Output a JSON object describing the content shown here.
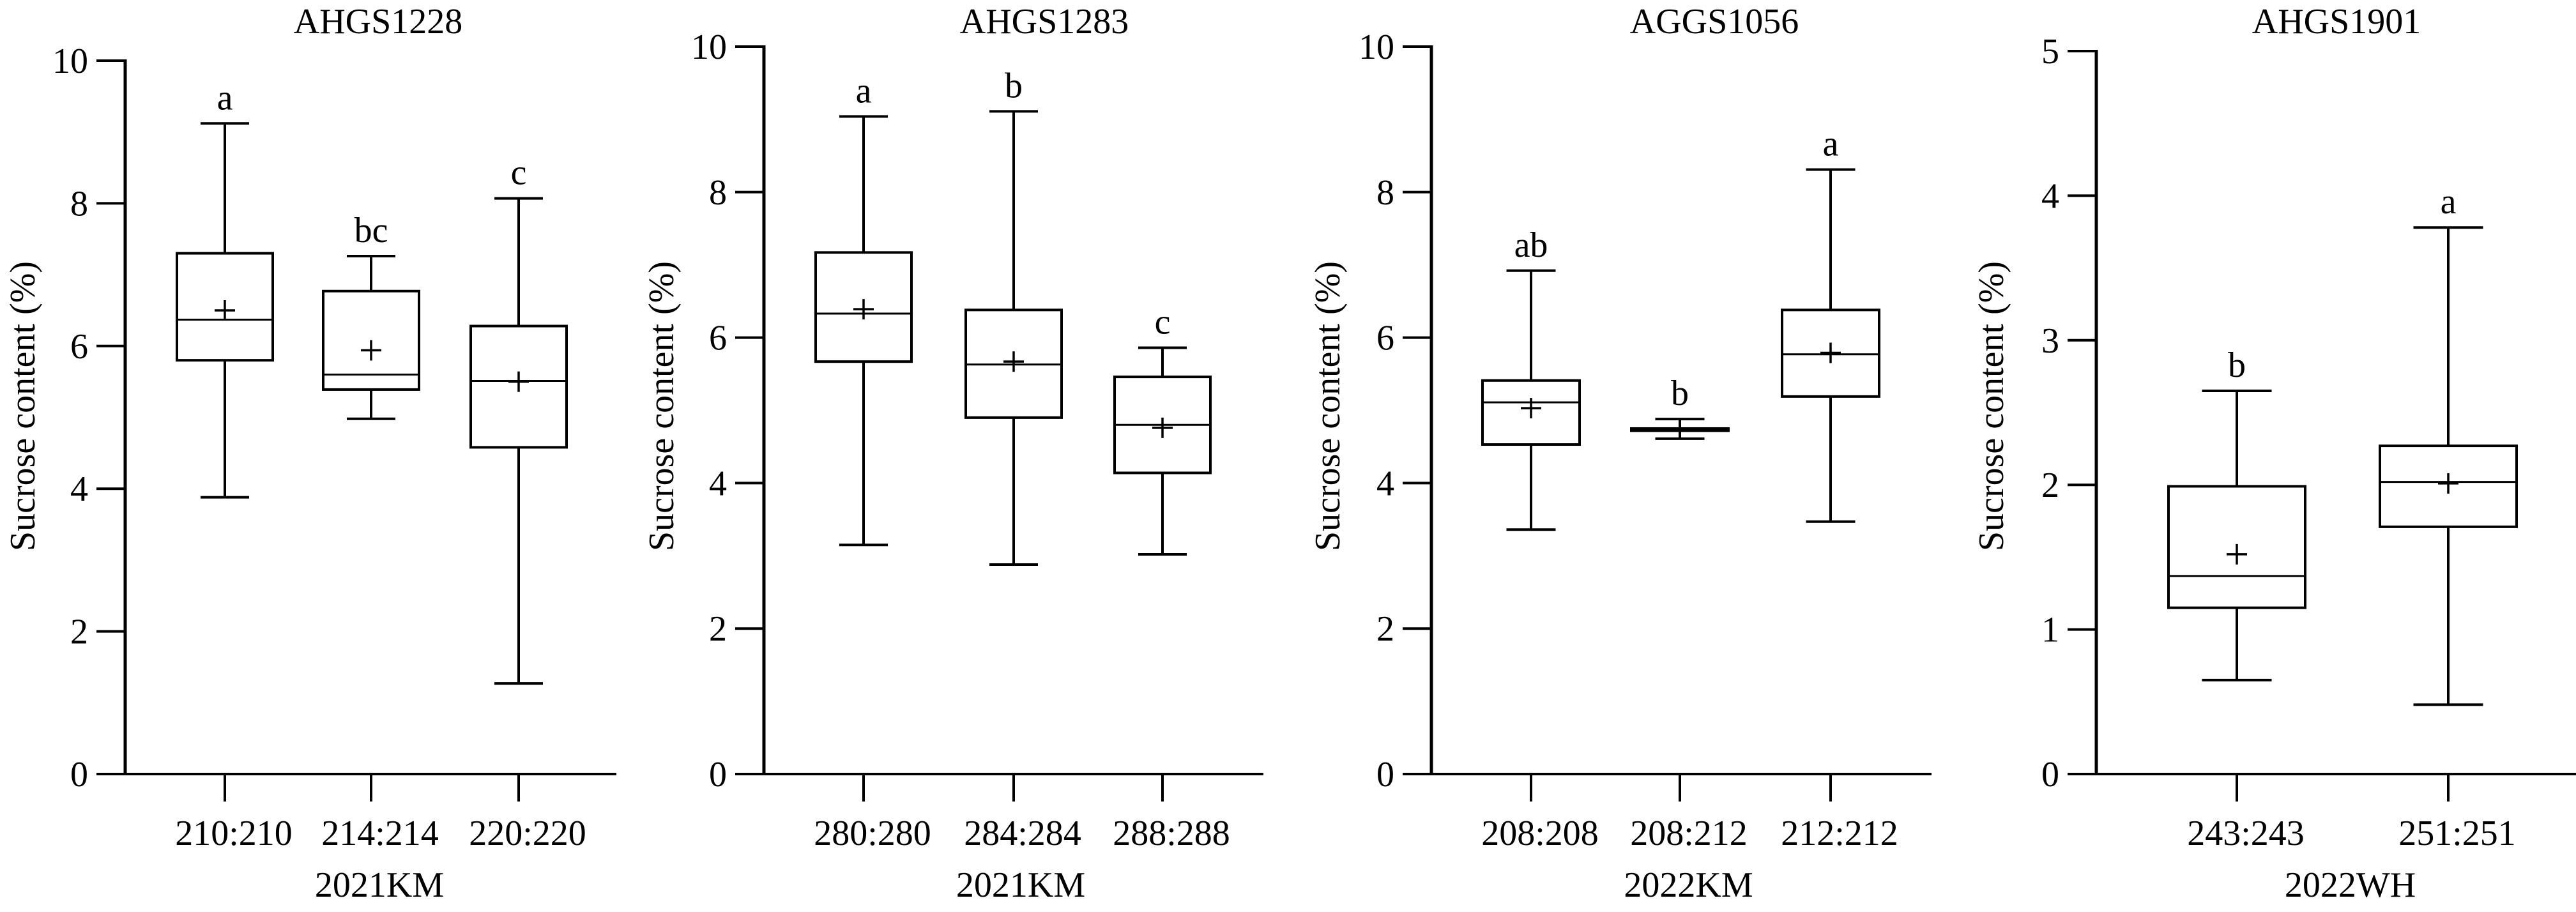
{
  "chart_data": [
    {
      "type": "box",
      "title": "AHGS1228",
      "xlabel": "2021KM",
      "ylabel": "Sucrose content (%)",
      "ylim": [
        0,
        10
      ],
      "yticks": [
        "0",
        "2",
        "4",
        "6",
        "8",
        "10"
      ],
      "yticks_values": [
        0,
        2,
        4,
        6,
        8,
        10
      ],
      "categories": [
        "210:210",
        "214:214",
        "220:220"
      ],
      "boxes": [
        {
          "min": 3.88,
          "q1": 5.8,
          "median": 6.37,
          "q3": 7.3,
          "max": 9.12,
          "mean": 6.5,
          "letter": "a"
        },
        {
          "min": 4.98,
          "q1": 5.39,
          "median": 5.6,
          "q3": 6.77,
          "max": 7.26,
          "mean": 5.94,
          "letter": "bc"
        },
        {
          "min": 1.27,
          "q1": 4.58,
          "median": 5.51,
          "q3": 6.28,
          "max": 8.07,
          "mean": 5.5,
          "letter": "c"
        }
      ]
    },
    {
      "type": "box",
      "title": "AHGS1283",
      "xlabel": "2021KM",
      "ylabel": "Sucrose content (%)",
      "ylim": [
        0,
        10
      ],
      "yticks": [
        "0",
        "2",
        "4",
        "6",
        "8",
        "10"
      ],
      "yticks_values": [
        0,
        2,
        4,
        6,
        8,
        10
      ],
      "categories": [
        "280:280",
        "284:284",
        "288:288"
      ],
      "boxes": [
        {
          "min": 3.15,
          "q1": 5.67,
          "median": 6.33,
          "q3": 7.17,
          "max": 9.04,
          "mean": 6.39,
          "letter": "a"
        },
        {
          "min": 2.88,
          "q1": 4.9,
          "median": 5.63,
          "q3": 6.38,
          "max": 9.11,
          "mean": 5.67,
          "letter": "b"
        },
        {
          "min": 3.02,
          "q1": 4.14,
          "median": 4.8,
          "q3": 5.46,
          "max": 5.86,
          "mean": 4.76,
          "letter": "c"
        }
      ]
    },
    {
      "type": "box",
      "title": "AGGS1056",
      "xlabel": "2022KM",
      "ylabel": "Sucrose content (%)",
      "ylim": [
        0,
        10
      ],
      "yticks": [
        "0",
        "2",
        "4",
        "6",
        "8",
        "10"
      ],
      "yticks_values": [
        0,
        2,
        4,
        6,
        8,
        10
      ],
      "categories": [
        "208:208",
        "208:212",
        "212:212"
      ],
      "boxes": [
        {
          "min": 3.36,
          "q1": 4.53,
          "median": 5.11,
          "q3": 5.41,
          "max": 6.92,
          "mean": 5.03,
          "letter": "ab"
        },
        {
          "min": 4.61,
          "q1": 4.72,
          "median": 4.73,
          "q3": 4.75,
          "max": 4.88,
          "mean": 4.74,
          "letter": "b"
        },
        {
          "min": 3.47,
          "q1": 5.19,
          "median": 5.77,
          "q3": 6.38,
          "max": 8.31,
          "mean": 5.79,
          "letter": "a"
        }
      ]
    },
    {
      "type": "box",
      "title": "AHGS1901",
      "xlabel": "2022WH",
      "ylabel": "Sucrose content (%)",
      "ylim": [
        0,
        5
      ],
      "yticks": [
        "0",
        "1",
        "2",
        "3",
        "4",
        "5"
      ],
      "yticks_values": [
        0,
        1,
        2,
        3,
        4,
        5
      ],
      "categories": [
        "243:243",
        "251:251"
      ],
      "boxes": [
        {
          "min": 0.65,
          "q1": 1.15,
          "median": 1.37,
          "q3": 1.99,
          "max": 2.65,
          "mean": 1.52,
          "letter": "b"
        },
        {
          "min": 0.48,
          "q1": 1.71,
          "median": 2.02,
          "q3": 2.27,
          "max": 3.78,
          "mean": 2.01,
          "letter": "a"
        }
      ]
    }
  ]
}
